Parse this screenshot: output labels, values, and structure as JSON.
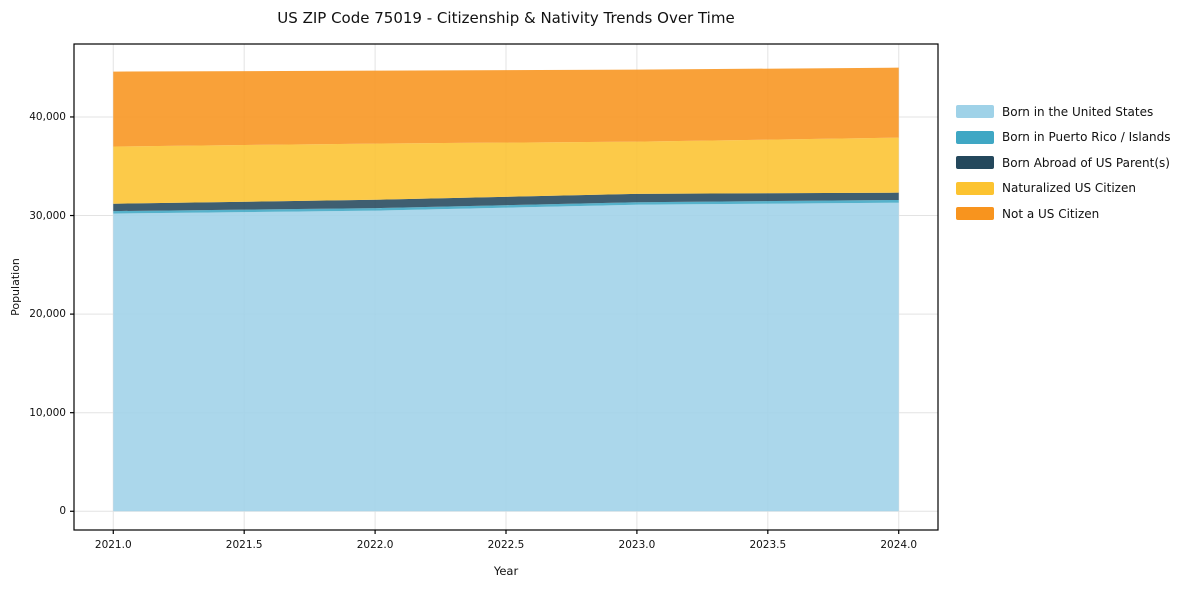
{
  "window": {
    "title": "US ZIP Code 75019 - Citizenship & Nativity Trends Over Time"
  },
  "chart": {
    "title": "US ZIP Code 75019 - Citizenship & Nativity Trends Over Time",
    "xlabel": "Year",
    "ylabel": "Population"
  },
  "chart_data": {
    "type": "area",
    "stacked": true,
    "title": "US ZIP Code 75019 - Citizenship & Nativity Trends Over Time",
    "xlabel": "Year",
    "ylabel": "Population",
    "x": [
      2021,
      2022,
      2023,
      2024
    ],
    "series": [
      {
        "name": "Born in the United States",
        "color": "#9FD2E8",
        "values": [
          30200,
          30500,
          31100,
          31300
        ]
      },
      {
        "name": "Born in Puerto Rico / Islands",
        "color": "#3FA7C4",
        "values": [
          250,
          250,
          250,
          280
        ]
      },
      {
        "name": "Born Abroad of US Parent(s)",
        "color": "#24485C",
        "values": [
          750,
          850,
          850,
          740
        ]
      },
      {
        "name": "Naturalized US Citizen",
        "color": "#FCC330",
        "values": [
          5800,
          5700,
          5300,
          5580
        ]
      },
      {
        "name": "Not a US Citizen",
        "color": "#F8941E",
        "values": [
          7600,
          7400,
          7300,
          7100
        ]
      }
    ],
    "totals": [
      44600,
      44700,
      44800,
      45000
    ],
    "xlim": [
      2020.85,
      2024.15
    ],
    "ylim": [
      -1900,
      47400
    ],
    "x_ticks": [
      2021.0,
      2021.5,
      2022.0,
      2022.5,
      2023.0,
      2023.5,
      2024.0
    ],
    "x_tick_labels": [
      "2021.0",
      "2021.5",
      "2022.0",
      "2022.5",
      "2023.0",
      "2023.5",
      "2024.0"
    ],
    "y_ticks": [
      0,
      10000,
      20000,
      30000,
      40000
    ],
    "y_tick_labels": [
      "0",
      "10,000",
      "20,000",
      "30,000",
      "40,000"
    ],
    "grid": true,
    "grid_color": "#e3e3e3",
    "frame_color": "#000000",
    "fill_opacity": 0.88,
    "legend_position": "outside-right"
  }
}
